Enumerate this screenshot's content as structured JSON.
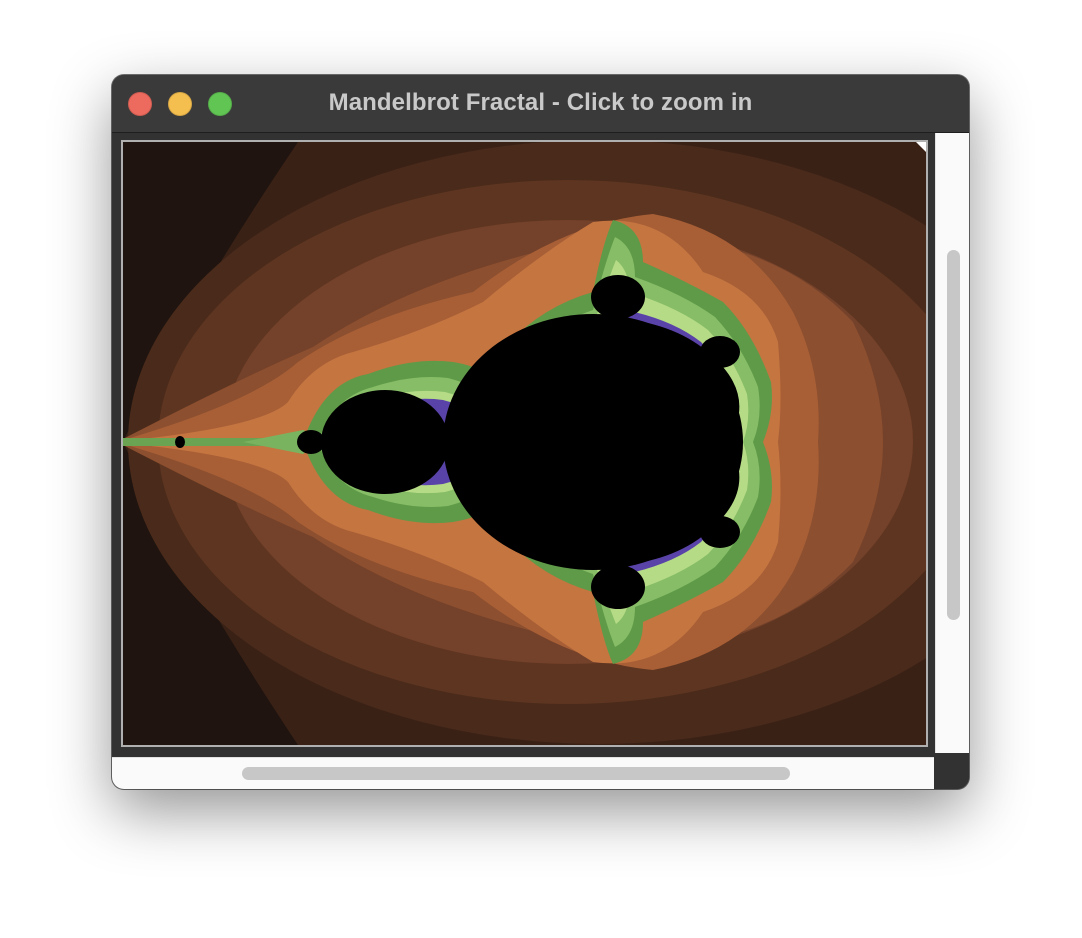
{
  "window": {
    "title": "Mandelbrot Fractal - Click to zoom in"
  },
  "fractal": {
    "name": "Mandelbrot set",
    "colors": {
      "set_interior": "#000000",
      "outer_bands": [
        "#1f140f",
        "#3b2216",
        "#5a3220",
        "#7e4628",
        "#a25c33",
        "#c7763f"
      ],
      "boundary_bands": [
        "#4d8a3f",
        "#68a851",
        "#8fc46a",
        "#bfe08a"
      ],
      "edge_highlight": "#6b4cc4"
    }
  },
  "scrollbars": {
    "vertical": "vertical-scrollbar",
    "horizontal": "horizontal-scrollbar"
  }
}
